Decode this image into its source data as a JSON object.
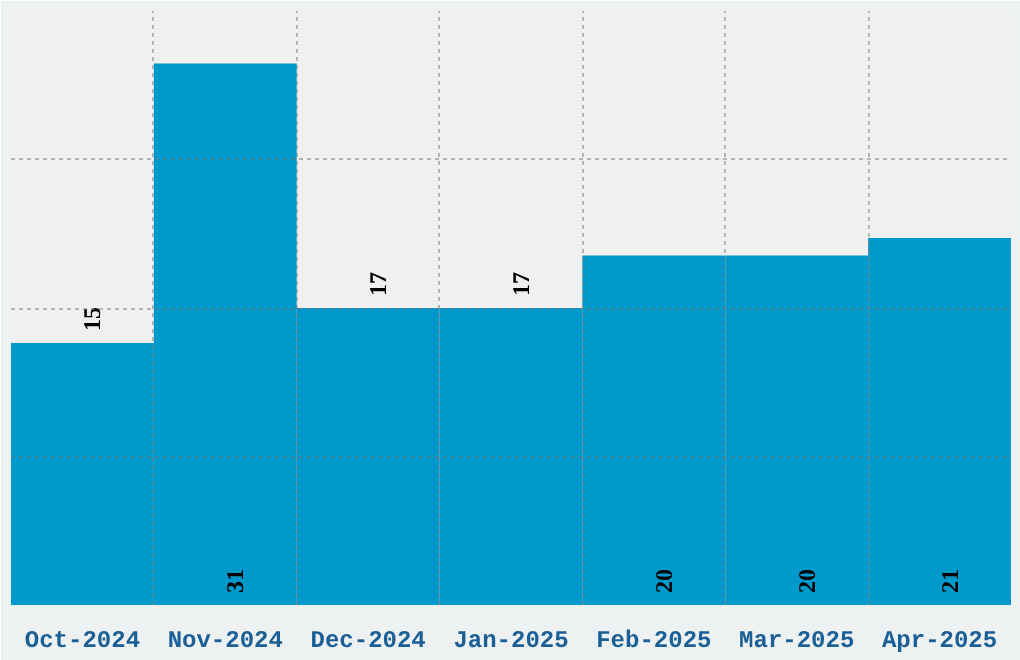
{
  "chart_data": {
    "type": "bar",
    "categories": [
      "Oct-2024",
      "Nov-2024",
      "Dec-2024",
      "Jan-2025",
      "Feb-2025",
      "Mar-2025",
      "Apr-2025"
    ],
    "values": [
      15,
      31,
      17,
      17,
      20,
      20,
      21
    ],
    "color": "#0099cc",
    "ylim": [
      0,
      34
    ],
    "yticks": [
      {
        "value": 8.5,
        "label": null
      },
      {
        "value": 17,
        "label": null
      },
      {
        "value": 25.5,
        "label": null
      }
    ],
    "tick_labels": "x",
    "grid": true,
    "data_labels": true
  }
}
